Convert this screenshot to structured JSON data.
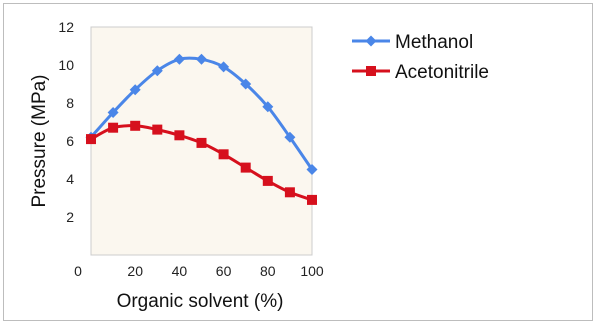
{
  "chart_data": {
    "type": "line",
    "xlabel": "Organic solvent (%)",
    "ylabel": "Pressure (MPa)",
    "x": [
      0,
      10,
      20,
      30,
      40,
      50,
      60,
      70,
      80,
      90,
      100
    ],
    "xlim": [
      0,
      100
    ],
    "ylim": [
      0,
      12
    ],
    "x_ticks": [
      0,
      20,
      40,
      60,
      80,
      100
    ],
    "y_ticks": [
      2,
      4,
      6,
      8,
      10,
      12
    ],
    "origin_label": "0",
    "grid": false,
    "legend_position": "right",
    "series": [
      {
        "name": "Methanol",
        "color": "#4a86e8",
        "marker": "diamond",
        "values": [
          6.2,
          7.5,
          8.7,
          9.7,
          10.3,
          10.3,
          9.9,
          9.0,
          7.8,
          6.2,
          4.5
        ]
      },
      {
        "name": "Acetonitrile",
        "color": "#d6101d",
        "marker": "square",
        "values": [
          6.1,
          6.7,
          6.8,
          6.6,
          6.3,
          5.9,
          5.3,
          4.6,
          3.9,
          3.3,
          2.9
        ]
      }
    ]
  }
}
